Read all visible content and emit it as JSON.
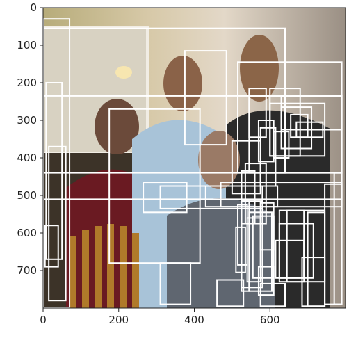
{
  "image": {
    "description_tokens": [
      "photo-backdrop",
      "wall",
      "window",
      "lamp",
      "chair"
    ]
  },
  "chart_data": {
    "type": "image-with-boxes",
    "xlim": [
      0,
      800
    ],
    "ylim": [
      800,
      0
    ],
    "x_ticks": [
      0,
      200,
      400,
      600
    ],
    "y_ticks": [
      0,
      100,
      200,
      300,
      400,
      500,
      600,
      700
    ],
    "x_tick_labels": [
      "0",
      "200",
      "400",
      "600"
    ],
    "y_tick_labels": [
      "0",
      "100",
      "200",
      "300",
      "400",
      "500",
      "600",
      "700"
    ],
    "box_color": "#ffffff",
    "boxes": [
      [
        0,
        30,
        70,
        800
      ],
      [
        0,
        55,
        640,
        440
      ],
      [
        8,
        200,
        50,
        670
      ],
      [
        15,
        370,
        60,
        780
      ],
      [
        5,
        580,
        40,
        690
      ],
      [
        0,
        235,
        790,
        510
      ],
      [
        375,
        115,
        485,
        365
      ],
      [
        175,
        270,
        415,
        680
      ],
      [
        310,
        680,
        390,
        790
      ],
      [
        515,
        145,
        790,
        440
      ],
      [
        545,
        235,
        790,
        440
      ],
      [
        600,
        215,
        680,
        395
      ],
      [
        545,
        215,
        590,
        345
      ],
      [
        630,
        235,
        790,
        325
      ],
      [
        600,
        255,
        745,
        395
      ],
      [
        630,
        265,
        710,
        375
      ],
      [
        655,
        285,
        700,
        345
      ],
      [
        670,
        305,
        740,
        345
      ],
      [
        500,
        355,
        575,
        495
      ],
      [
        525,
        435,
        560,
        575
      ],
      [
        535,
        415,
        590,
        575
      ],
      [
        470,
        465,
        790,
        530
      ],
      [
        430,
        475,
        620,
        530
      ],
      [
        310,
        475,
        580,
        535
      ],
      [
        265,
        465,
        380,
        545
      ],
      [
        525,
        515,
        545,
        755
      ],
      [
        540,
        560,
        575,
        730
      ],
      [
        555,
        555,
        610,
        720
      ],
      [
        515,
        525,
        540,
        685
      ],
      [
        575,
        520,
        610,
        645
      ],
      [
        625,
        540,
        745,
        730
      ],
      [
        625,
        575,
        715,
        720
      ],
      [
        615,
        620,
        690,
        720
      ],
      [
        545,
        545,
        605,
        755
      ],
      [
        525,
        515,
        580,
        745
      ],
      [
        510,
        585,
        535,
        705
      ],
      [
        645,
        540,
        690,
        730
      ],
      [
        700,
        545,
        745,
        795
      ],
      [
        745,
        470,
        790,
        790
      ],
      [
        770,
        440,
        790,
        790
      ],
      [
        460,
        725,
        530,
        795
      ],
      [
        575,
        735,
        640,
        795
      ],
      [
        685,
        665,
        745,
        795
      ],
      [
        570,
        690,
        610,
        765
      ],
      [
        570,
        300,
        610,
        410
      ],
      [
        575,
        320,
        615,
        475
      ],
      [
        610,
        330,
        650,
        400
      ]
    ]
  }
}
